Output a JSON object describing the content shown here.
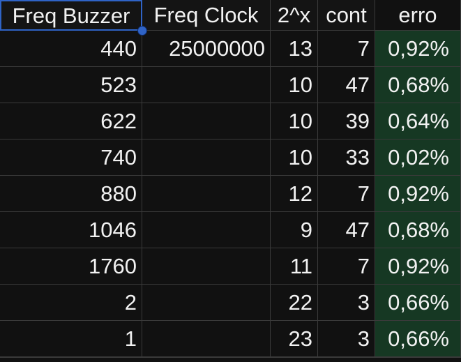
{
  "headers": [
    "Freq Buzzer",
    "Freq Clock",
    "2^x",
    "cont",
    "erro"
  ],
  "rows": [
    {
      "buzzer": "440",
      "clock": "25000000",
      "pow": "13",
      "cont": "7",
      "erro": "0,92%"
    },
    {
      "buzzer": "523",
      "clock": "",
      "pow": "10",
      "cont": "47",
      "erro": "0,68%"
    },
    {
      "buzzer": "622",
      "clock": "",
      "pow": "10",
      "cont": "39",
      "erro": "0,64%"
    },
    {
      "buzzer": "740",
      "clock": "",
      "pow": "10",
      "cont": "33",
      "erro": "0,02%"
    },
    {
      "buzzer": "880",
      "clock": "",
      "pow": "12",
      "cont": "7",
      "erro": "0,92%"
    },
    {
      "buzzer": "1046",
      "clock": "",
      "pow": "9",
      "cont": "47",
      "erro": "0,68%"
    },
    {
      "buzzer": "1760",
      "clock": "",
      "pow": "11",
      "cont": "7",
      "erro": "0,92%"
    },
    {
      "buzzer": "2",
      "clock": "",
      "pow": "22",
      "cont": "3",
      "erro": "0,66%"
    },
    {
      "buzzer": "1",
      "clock": "",
      "pow": "23",
      "cont": "3",
      "erro": "0,66%"
    }
  ],
  "colors": {
    "background": "#111111",
    "gridline": "#3a3a3a",
    "text": "#f2f2f2",
    "erro_fill": "#163823",
    "selection": "#2f63c6"
  },
  "selected_cell": "Freq Buzzer"
}
